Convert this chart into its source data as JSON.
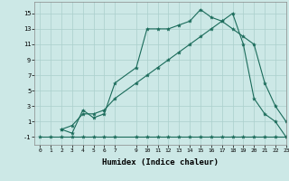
{
  "xlabel": "Humidex (Indice chaleur)",
  "bg_color": "#cce8e6",
  "line_color": "#1a6b5a",
  "grid_color": "#aacfcc",
  "series": [
    {
      "x": [
        0,
        1,
        2,
        3,
        4,
        5,
        6,
        7,
        9,
        10,
        11,
        12,
        13,
        14,
        15,
        16,
        17,
        18,
        19,
        20,
        21,
        22,
        23
      ],
      "y": [
        -1,
        -1,
        -1,
        -1,
        -1,
        -1,
        -1,
        -1,
        -1,
        -1,
        -1,
        -1,
        -1,
        -1,
        -1,
        -1,
        -1,
        -1,
        -1,
        -1,
        -1,
        -1,
        -1
      ]
    },
    {
      "x": [
        2,
        3,
        4,
        5,
        6,
        7,
        9,
        10,
        11,
        12,
        13,
        14,
        15,
        16,
        17,
        18,
        19,
        20,
        21,
        22,
        23
      ],
      "y": [
        0,
        0.5,
        2,
        2,
        2.5,
        4,
        6,
        7,
        8,
        9,
        10,
        11,
        12,
        13,
        14,
        15,
        11,
        4,
        2,
        1,
        -1
      ]
    },
    {
      "x": [
        2,
        3,
        4,
        5,
        6,
        7,
        9,
        10,
        11,
        12,
        13,
        14,
        15,
        16,
        17,
        18,
        19,
        20,
        21,
        22,
        23
      ],
      "y": [
        0,
        -0.5,
        2.5,
        1.5,
        2,
        6,
        8,
        13,
        13,
        13,
        13.5,
        14,
        15.5,
        14.5,
        14,
        13,
        12,
        11,
        6,
        3,
        1
      ]
    }
  ],
  "xlim": [
    -0.5,
    23
  ],
  "ylim": [
    -2,
    16.5
  ],
  "yticks": [
    -1,
    1,
    3,
    5,
    7,
    9,
    11,
    13,
    15
  ],
  "xticks": [
    0,
    1,
    2,
    3,
    4,
    5,
    6,
    7,
    9,
    10,
    11,
    12,
    13,
    14,
    15,
    16,
    17,
    18,
    19,
    20,
    21,
    22,
    23
  ]
}
